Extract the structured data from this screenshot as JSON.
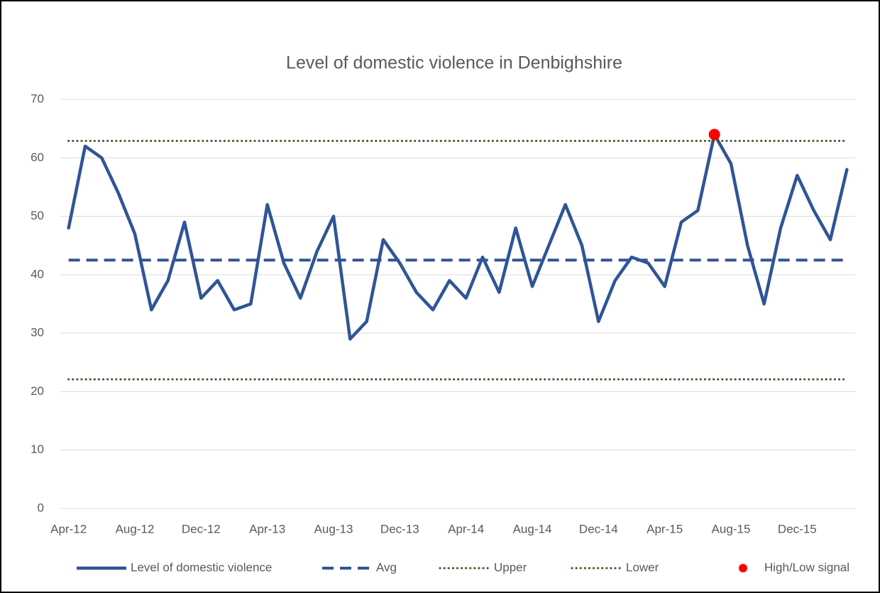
{
  "chart_data": {
    "type": "line",
    "title": "Level of domestic violence in Denbighshire",
    "categories": [
      "Apr-12",
      null,
      null,
      null,
      "Aug-12",
      null,
      null,
      null,
      "Dec-12",
      null,
      null,
      null,
      "Apr-13",
      null,
      null,
      null,
      "Aug-13",
      null,
      null,
      null,
      "Dec-13",
      null,
      null,
      null,
      "Apr-14",
      null,
      null,
      null,
      "Aug-14",
      null,
      null,
      null,
      "Dec-14",
      null,
      null,
      null,
      "Apr-15",
      null,
      null,
      null,
      "Aug-15",
      null,
      null,
      null,
      "Dec-15",
      null,
      null,
      null
    ],
    "series": [
      {
        "name": "Level of domestic violence",
        "color": "#2f5597",
        "style": "solid",
        "values": [
          48,
          62,
          60,
          54,
          47,
          34,
          39,
          49,
          36,
          39,
          34,
          35,
          52,
          42,
          36,
          44,
          50,
          29,
          32,
          46,
          42,
          37,
          34,
          39,
          36,
          43,
          37,
          48,
          38,
          45,
          52,
          45,
          32,
          39,
          43,
          42,
          38,
          49,
          51,
          64,
          59,
          45,
          35,
          48,
          57,
          51,
          46,
          58
        ]
      },
      {
        "name": "Avg",
        "color": "#2f5597",
        "style": "dashed",
        "values": [
          42.5,
          42.5,
          42.5,
          42.5,
          42.5,
          42.5,
          42.5,
          42.5,
          42.5,
          42.5,
          42.5,
          42.5,
          42.5,
          42.5,
          42.5,
          42.5,
          42.5,
          42.5,
          42.5,
          42.5,
          42.5,
          42.5,
          42.5,
          42.5,
          42.5,
          42.5,
          42.5,
          42.5,
          42.5,
          42.5,
          42.5,
          42.5,
          42.5,
          42.5,
          42.5,
          42.5,
          42.5,
          42.5,
          42.5,
          42.5,
          42.5,
          42.5,
          42.5,
          42.5,
          42.5,
          42.5,
          42.5,
          42.5
        ]
      },
      {
        "name": "Upper",
        "color": "#375623",
        "style": "dotted",
        "values": [
          62.9,
          62.9,
          62.9,
          62.9,
          62.9,
          62.9,
          62.9,
          62.9,
          62.9,
          62.9,
          62.9,
          62.9,
          62.9,
          62.9,
          62.9,
          62.9,
          62.9,
          62.9,
          62.9,
          62.9,
          62.9,
          62.9,
          62.9,
          62.9,
          62.9,
          62.9,
          62.9,
          62.9,
          62.9,
          62.9,
          62.9,
          62.9,
          62.9,
          62.9,
          62.9,
          62.9,
          62.9,
          62.9,
          62.9,
          62.9,
          62.9,
          62.9,
          62.9,
          62.9,
          62.9,
          62.9,
          62.9,
          62.9
        ]
      },
      {
        "name": "Lower",
        "color": "#375623",
        "style": "dotted",
        "values": [
          22.1,
          22.1,
          22.1,
          22.1,
          22.1,
          22.1,
          22.1,
          22.1,
          22.1,
          22.1,
          22.1,
          22.1,
          22.1,
          22.1,
          22.1,
          22.1,
          22.1,
          22.1,
          22.1,
          22.1,
          22.1,
          22.1,
          22.1,
          22.1,
          22.1,
          22.1,
          22.1,
          22.1,
          22.1,
          22.1,
          22.1,
          22.1,
          22.1,
          22.1,
          22.1,
          22.1,
          22.1,
          22.1,
          22.1,
          22.1,
          22.1,
          22.1,
          22.1,
          22.1,
          22.1,
          22.1,
          22.1,
          22.1
        ]
      },
      {
        "name": "High/Low signal",
        "color": "#ff0000",
        "style": "marker",
        "values": [
          null,
          null,
          null,
          null,
          null,
          null,
          null,
          null,
          null,
          null,
          null,
          null,
          null,
          null,
          null,
          null,
          null,
          null,
          null,
          null,
          null,
          null,
          null,
          null,
          null,
          null,
          null,
          null,
          null,
          null,
          null,
          null,
          null,
          null,
          null,
          null,
          null,
          null,
          null,
          64,
          null,
          null,
          null,
          null,
          null,
          null,
          null,
          null
        ]
      }
    ],
    "ylim": [
      0,
      70
    ],
    "yticks": [
      0,
      10,
      20,
      30,
      40,
      50,
      60,
      70
    ],
    "grid": true,
    "legend": "bottom"
  }
}
